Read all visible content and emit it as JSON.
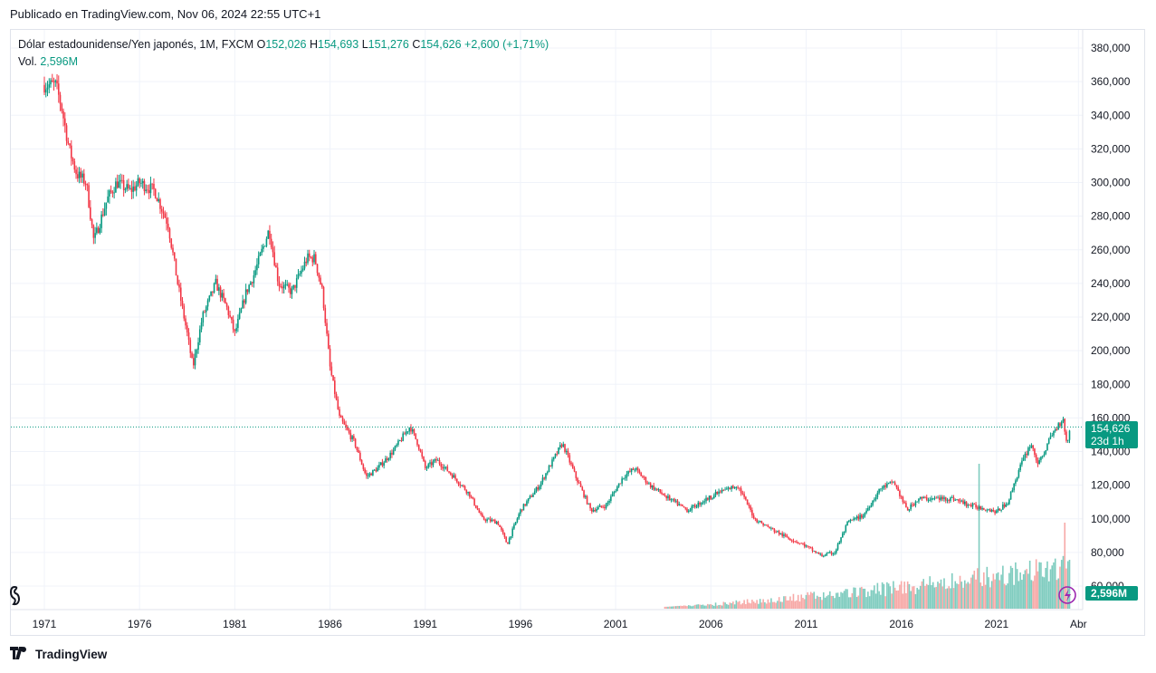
{
  "header": {
    "published": "Publicado en TradingView.com, Nov 06, 2024 22:55 UTC+1"
  },
  "legend": {
    "symbol": "Dólar estadounidense/Yen japonés, 1M, FXCM",
    "o_label": "O",
    "o_value": "152,026",
    "h_label": "H",
    "h_value": "154,693",
    "l_label": "L",
    "l_value": "151,276",
    "c_label": "C",
    "c_value": "154,626",
    "change": "+2,600 (+1,71%)",
    "vol_label": "Vol.",
    "vol_value": "2,596M"
  },
  "price_tag": {
    "price": "154,626",
    "countdown": "23d 1h"
  },
  "volume_tag": "2,596M",
  "footer": {
    "brand": "TradingView"
  },
  "colors": {
    "up": "#089981",
    "down": "#f23645",
    "vol_up": "#7fccbf",
    "vol_down": "#f7a9a7"
  },
  "chart_data": {
    "type": "candlestick",
    "interval": "1M",
    "y_ticks": [
      "380,000",
      "360,000",
      "340,000",
      "320,000",
      "300,000",
      "280,000",
      "260,000",
      "240,000",
      "220,000",
      "200,000",
      "180,000",
      "160,000",
      "140,000",
      "120,000",
      "100,000",
      "80,000",
      "60,000"
    ],
    "ylim": [
      60,
      380
    ],
    "x_ticks": [
      "1971",
      "1976",
      "1981",
      "1986",
      "1991",
      "1996",
      "2001",
      "2006",
      "2011",
      "2016",
      "2021",
      "Abr"
    ],
    "last_price": 154.626,
    "grid": true,
    "price_path": [
      [
        1971.0,
        358
      ],
      [
        1971.6,
        358
      ],
      [
        1971.9,
        345
      ],
      [
        1972.3,
        320
      ],
      [
        1972.7,
        305
      ],
      [
        1973.2,
        300
      ],
      [
        1973.6,
        265
      ],
      [
        1974.3,
        290
      ],
      [
        1974.8,
        300
      ],
      [
        1975.5,
        295
      ],
      [
        1976.0,
        300
      ],
      [
        1976.8,
        295
      ],
      [
        1977.5,
        275
      ],
      [
        1978.0,
        240
      ],
      [
        1978.5,
        210
      ],
      [
        1978.8,
        190
      ],
      [
        1979.3,
        220
      ],
      [
        1980.0,
        240
      ],
      [
        1980.6,
        225
      ],
      [
        1981.0,
        210
      ],
      [
        1981.6,
        235
      ],
      [
        1982.0,
        245
      ],
      [
        1982.8,
        272
      ],
      [
        1983.3,
        240
      ],
      [
        1984.0,
        235
      ],
      [
        1984.8,
        255
      ],
      [
        1985.2,
        255
      ],
      [
        1985.6,
        235
      ],
      [
        1986.0,
        190
      ],
      [
        1986.5,
        160
      ],
      [
        1987.3,
        145
      ],
      [
        1987.9,
        125
      ],
      [
        1988.5,
        130
      ],
      [
        1989.3,
        140
      ],
      [
        1990.2,
        155
      ],
      [
        1990.6,
        145
      ],
      [
        1991.0,
        130
      ],
      [
        1991.6,
        135
      ],
      [
        1992.5,
        125
      ],
      [
        1993.3,
        115
      ],
      [
        1994.0,
        100
      ],
      [
        1994.8,
        98
      ],
      [
        1995.3,
        85
      ],
      [
        1996.0,
        105
      ],
      [
        1997.0,
        120
      ],
      [
        1998.2,
        145
      ],
      [
        1998.9,
        125
      ],
      [
        1999.7,
        105
      ],
      [
        2000.5,
        108
      ],
      [
        2001.4,
        125
      ],
      [
        2002.0,
        130
      ],
      [
        2002.8,
        120
      ],
      [
        2003.8,
        112
      ],
      [
        2004.8,
        105
      ],
      [
        2005.5,
        110
      ],
      [
        2006.3,
        115
      ],
      [
        2007.4,
        120
      ],
      [
        2008.3,
        100
      ],
      [
        2009.0,
        95
      ],
      [
        2009.8,
        90
      ],
      [
        2010.8,
        85
      ],
      [
        2011.8,
        78
      ],
      [
        2012.5,
        80
      ],
      [
        2013.2,
        98
      ],
      [
        2014.0,
        102
      ],
      [
        2014.9,
        118
      ],
      [
        2015.6,
        122
      ],
      [
        2016.3,
        105
      ],
      [
        2016.9,
        112
      ],
      [
        2017.8,
        112
      ],
      [
        2018.7,
        112
      ],
      [
        2019.6,
        108
      ],
      [
        2020.5,
        106
      ],
      [
        2021.0,
        104
      ],
      [
        2021.6,
        110
      ],
      [
        2022.2,
        130
      ],
      [
        2022.8,
        145
      ],
      [
        2023.2,
        132
      ],
      [
        2023.9,
        150
      ],
      [
        2024.5,
        160
      ],
      [
        2024.7,
        143
      ],
      [
        2024.85,
        154.6
      ]
    ],
    "volume_start": 2003.5,
    "volume_unit": "M"
  }
}
